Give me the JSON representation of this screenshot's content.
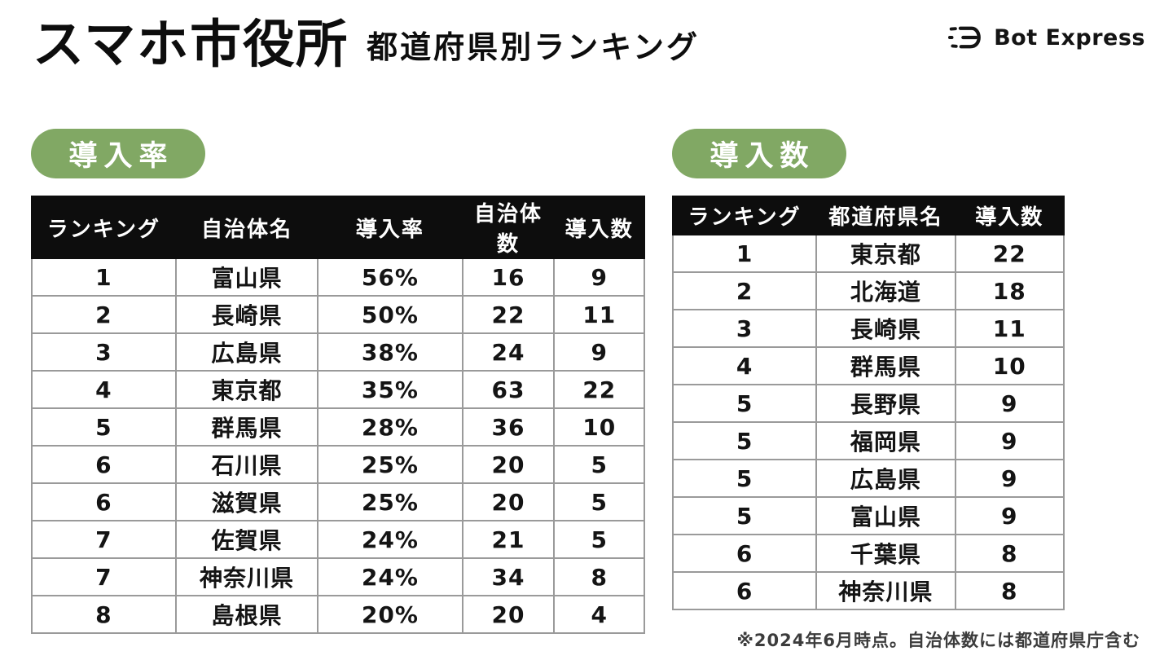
{
  "header": {
    "brand": "スマホ市役所",
    "subtitle": "都道府県別ランキング",
    "logo_text": "Bot Express"
  },
  "colors": {
    "badge_green": "#81a864",
    "table_header_black": "#0d0d0d",
    "grid_gray": "#9a9a9a"
  },
  "adoption_rate": {
    "badge": "導入率",
    "columns": [
      "ランキング",
      "自治体名",
      "導入率",
      "自治体数",
      "導入数"
    ],
    "rows": [
      [
        "1",
        "富山県",
        "56%",
        "16",
        "9"
      ],
      [
        "2",
        "長崎県",
        "50%",
        "22",
        "11"
      ],
      [
        "3",
        "広島県",
        "38%",
        "24",
        "9"
      ],
      [
        "4",
        "東京都",
        "35%",
        "63",
        "22"
      ],
      [
        "5",
        "群馬県",
        "28%",
        "36",
        "10"
      ],
      [
        "6",
        "石川県",
        "25%",
        "20",
        "5"
      ],
      [
        "6",
        "滋賀県",
        "25%",
        "20",
        "5"
      ],
      [
        "7",
        "佐賀県",
        "24%",
        "21",
        "5"
      ],
      [
        "7",
        "神奈川県",
        "24%",
        "34",
        "8"
      ],
      [
        "8",
        "島根県",
        "20%",
        "20",
        "4"
      ]
    ]
  },
  "adoption_count": {
    "badge": "導入数",
    "columns": [
      "ランキング",
      "都道府県名",
      "導入数"
    ],
    "rows": [
      [
        "1",
        "東京都",
        "22"
      ],
      [
        "2",
        "北海道",
        "18"
      ],
      [
        "3",
        "長崎県",
        "11"
      ],
      [
        "4",
        "群馬県",
        "10"
      ],
      [
        "5",
        "長野県",
        "9"
      ],
      [
        "5",
        "福岡県",
        "9"
      ],
      [
        "5",
        "広島県",
        "9"
      ],
      [
        "5",
        "富山県",
        "9"
      ],
      [
        "6",
        "千葉県",
        "8"
      ],
      [
        "6",
        "神奈川県",
        "8"
      ]
    ]
  },
  "footnote": "※2024年6月時点。自治体数には都道府県庁含む"
}
